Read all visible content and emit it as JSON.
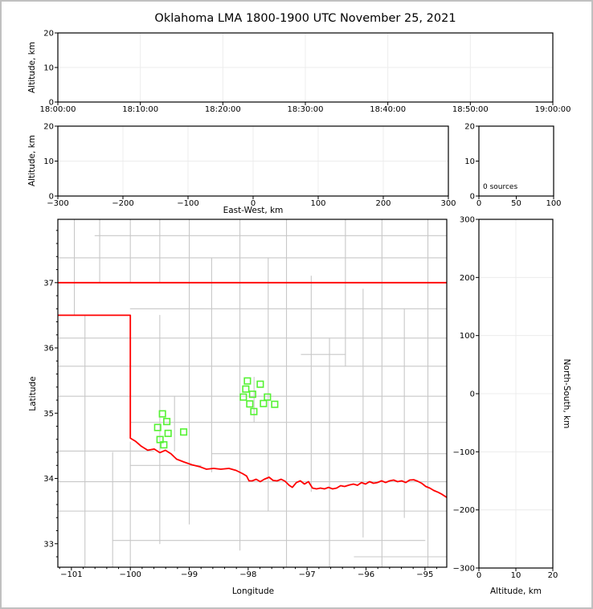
{
  "figure": {
    "title": "Oklahoma LMA 1800-1900 UTC November 25, 2021"
  },
  "colors": {
    "background": "#ffffff",
    "frame_border": "#c0c0c0",
    "panel_edge": "#000000",
    "grid": "#ececec",
    "county_line": "#c8c8c8",
    "state_border": "#ff0000",
    "station": "#55f233"
  },
  "chart_data": [
    {
      "id": "time_height_panel",
      "type": "scatter",
      "ylabel": "Altitude, km",
      "ylim": [
        0,
        20
      ],
      "yticks": [
        0,
        10,
        20
      ],
      "xtick_labels": [
        "18:00:00",
        "18:10:00",
        "18:20:00",
        "18:30:00",
        "18:40:00",
        "18:50:00",
        "19:00:00"
      ],
      "points": []
    },
    {
      "id": "eastwest_height_panel",
      "type": "scatter",
      "xlabel": "East-West, km",
      "ylabel": "Altitude, km",
      "xlim": [
        -300,
        300
      ],
      "xticks": [
        -300,
        -200,
        -100,
        0,
        100,
        200,
        300
      ],
      "ylim": [
        0,
        20
      ],
      "yticks": [
        0,
        10,
        20
      ],
      "points": []
    },
    {
      "id": "altitude_histogram_panel",
      "type": "scatter",
      "annotation": "0 sources",
      "xlim": [
        0,
        100
      ],
      "xticks": [
        0,
        50,
        100
      ],
      "ylim": [
        0,
        20
      ],
      "yticks": [
        0,
        10,
        20
      ],
      "points": []
    },
    {
      "id": "plan_view_map",
      "type": "scatter",
      "xlabel": "Longitude",
      "ylabel": "Latitude",
      "xlim": [
        -101.23,
        -94.63
      ],
      "ylim": [
        32.64,
        37.97
      ],
      "xticks": [
        -101,
        -100,
        -99,
        -98,
        -97,
        -96,
        -95
      ],
      "yticks": [
        33,
        34,
        35,
        36,
        37
      ],
      "minor_tick_step": 0.2,
      "stations": [
        [
          -99.455,
          34.99
        ],
        [
          -99.381,
          34.872
        ],
        [
          -99.536,
          34.781
        ],
        [
          -99.359,
          34.691
        ],
        [
          -99.095,
          34.712
        ],
        [
          -99.496,
          34.596
        ],
        [
          -99.432,
          34.515
        ],
        [
          -98.013,
          35.494
        ],
        [
          -97.795,
          35.444
        ],
        [
          -98.041,
          35.37
        ],
        [
          -97.925,
          35.29
        ],
        [
          -98.082,
          35.247
        ],
        [
          -97.673,
          35.247
        ],
        [
          -97.973,
          35.142
        ],
        [
          -97.741,
          35.148
        ],
        [
          -97.55,
          35.136
        ],
        [
          -97.904,
          35.025
        ]
      ],
      "state_border": {
        "north": [
          [
            -101.23,
            37.0
          ],
          [
            -94.63,
            37.0
          ]
        ],
        "south": [
          [
            -101.23,
            36.5
          ],
          [
            -100.0,
            36.5
          ],
          [
            -100.0,
            34.617
          ],
          [
            -99.909,
            34.568
          ],
          [
            -99.814,
            34.494
          ],
          [
            -99.705,
            34.432
          ],
          [
            -99.595,
            34.451
          ],
          [
            -99.5,
            34.395
          ],
          [
            -99.405,
            34.432
          ],
          [
            -99.309,
            34.377
          ],
          [
            -99.214,
            34.296
          ],
          [
            -99.091,
            34.253
          ],
          [
            -98.955,
            34.21
          ],
          [
            -98.818,
            34.179
          ],
          [
            -98.709,
            34.142
          ],
          [
            -98.586,
            34.154
          ],
          [
            -98.464,
            34.142
          ],
          [
            -98.327,
            34.154
          ],
          [
            -98.205,
            34.123
          ],
          [
            -98.095,
            34.074
          ],
          [
            -98.027,
            34.037
          ],
          [
            -97.986,
            33.963
          ],
          [
            -97.932,
            33.963
          ],
          [
            -97.864,
            33.988
          ],
          [
            -97.795,
            33.951
          ],
          [
            -97.727,
            33.988
          ],
          [
            -97.645,
            34.019
          ],
          [
            -97.577,
            33.969
          ],
          [
            -97.509,
            33.963
          ],
          [
            -97.441,
            33.988
          ],
          [
            -97.373,
            33.957
          ],
          [
            -97.305,
            33.895
          ],
          [
            -97.25,
            33.864
          ],
          [
            -97.182,
            33.938
          ],
          [
            -97.114,
            33.963
          ],
          [
            -97.045,
            33.914
          ],
          [
            -96.977,
            33.951
          ],
          [
            -96.909,
            33.852
          ],
          [
            -96.841,
            33.84
          ],
          [
            -96.773,
            33.852
          ],
          [
            -96.705,
            33.84
          ],
          [
            -96.636,
            33.864
          ],
          [
            -96.568,
            33.84
          ],
          [
            -96.5,
            33.852
          ],
          [
            -96.432,
            33.889
          ],
          [
            -96.364,
            33.877
          ],
          [
            -96.282,
            33.901
          ],
          [
            -96.214,
            33.914
          ],
          [
            -96.145,
            33.895
          ],
          [
            -96.077,
            33.938
          ],
          [
            -96.009,
            33.914
          ],
          [
            -95.941,
            33.951
          ],
          [
            -95.873,
            33.926
          ],
          [
            -95.805,
            33.938
          ],
          [
            -95.736,
            33.963
          ],
          [
            -95.668,
            33.938
          ],
          [
            -95.6,
            33.963
          ],
          [
            -95.532,
            33.975
          ],
          [
            -95.464,
            33.951
          ],
          [
            -95.395,
            33.963
          ],
          [
            -95.327,
            33.938
          ],
          [
            -95.259,
            33.975
          ],
          [
            -95.191,
            33.981
          ],
          [
            -95.123,
            33.957
          ],
          [
            -95.055,
            33.926
          ],
          [
            -94.986,
            33.877
          ],
          [
            -94.918,
            33.852
          ],
          [
            -94.85,
            33.815
          ],
          [
            -94.782,
            33.79
          ],
          [
            -94.714,
            33.759
          ],
          [
            -94.63,
            33.71
          ]
        ]
      },
      "county_lines": [
        [
          -100.95,
          36.5,
          -100.95,
          37.97
        ],
        [
          -100.77,
          32.64,
          -100.77,
          36.5
        ],
        [
          -100.52,
          37.0,
          -100.52,
          37.97
        ],
        [
          -100.0,
          37.0,
          -100.0,
          37.97
        ],
        [
          -100.0,
          32.64,
          -100.0,
          34.56
        ],
        [
          -100.3,
          32.64,
          -100.3,
          34.4
        ],
        [
          -99.5,
          33.0,
          -99.5,
          36.5
        ],
        [
          -99.5,
          37.0,
          -99.5,
          37.97
        ],
        [
          -99.25,
          34.42,
          -99.25,
          35.26
        ],
        [
          -99.0,
          33.3,
          -99.0,
          37.97
        ],
        [
          -98.62,
          34.1,
          -98.62,
          37.38
        ],
        [
          -98.14,
          32.9,
          -98.14,
          37.97
        ],
        [
          -97.9,
          34.86,
          -97.9,
          35.55
        ],
        [
          -97.66,
          33.5,
          -97.66,
          37.38
        ],
        [
          -97.35,
          32.64,
          -97.35,
          37.97
        ],
        [
          -96.93,
          33.8,
          -96.93,
          37.1
        ],
        [
          -96.62,
          32.64,
          -96.62,
          36.15
        ],
        [
          -96.35,
          35.72,
          -96.35,
          37.97
        ],
        [
          -96.05,
          33.1,
          -96.05,
          36.9
        ],
        [
          -95.73,
          32.64,
          -95.73,
          37.97
        ],
        [
          -95.35,
          33.4,
          -95.35,
          36.6
        ],
        [
          -94.95,
          32.64,
          -94.95,
          37.97
        ],
        [
          -101.23,
          37.38,
          -94.63,
          37.38
        ],
        [
          -100.6,
          37.72,
          -94.63,
          37.72
        ],
        [
          -100.0,
          36.6,
          -94.63,
          36.6
        ],
        [
          -101.23,
          36.15,
          -94.63,
          36.15
        ],
        [
          -101.23,
          35.72,
          -94.63,
          35.72
        ],
        [
          -101.23,
          35.26,
          -94.63,
          35.26
        ],
        [
          -100.0,
          34.86,
          -94.63,
          34.86
        ],
        [
          -101.23,
          34.42,
          -99.6,
          34.42
        ],
        [
          -98.62,
          34.38,
          -94.63,
          34.38
        ],
        [
          -101.23,
          33.95,
          -94.63,
          33.95
        ],
        [
          -101.23,
          33.5,
          -94.63,
          33.5
        ],
        [
          -100.3,
          33.05,
          -95.0,
          33.05
        ],
        [
          -96.2,
          32.8,
          -94.63,
          32.8
        ],
        [
          -97.1,
          35.9,
          -96.35,
          35.9
        ],
        [
          -100.0,
          34.2,
          -98.8,
          34.2
        ]
      ]
    },
    {
      "id": "northsouth_height_panel",
      "type": "scatter",
      "xlabel": "Altitude, km",
      "ylabel_right": "North-South, km",
      "xlim": [
        0,
        20
      ],
      "xticks": [
        0,
        10,
        20
      ],
      "ylim": [
        -300,
        300
      ],
      "yticks": [
        -300,
        -200,
        -100,
        0,
        100,
        200,
        300
      ],
      "points": []
    }
  ]
}
